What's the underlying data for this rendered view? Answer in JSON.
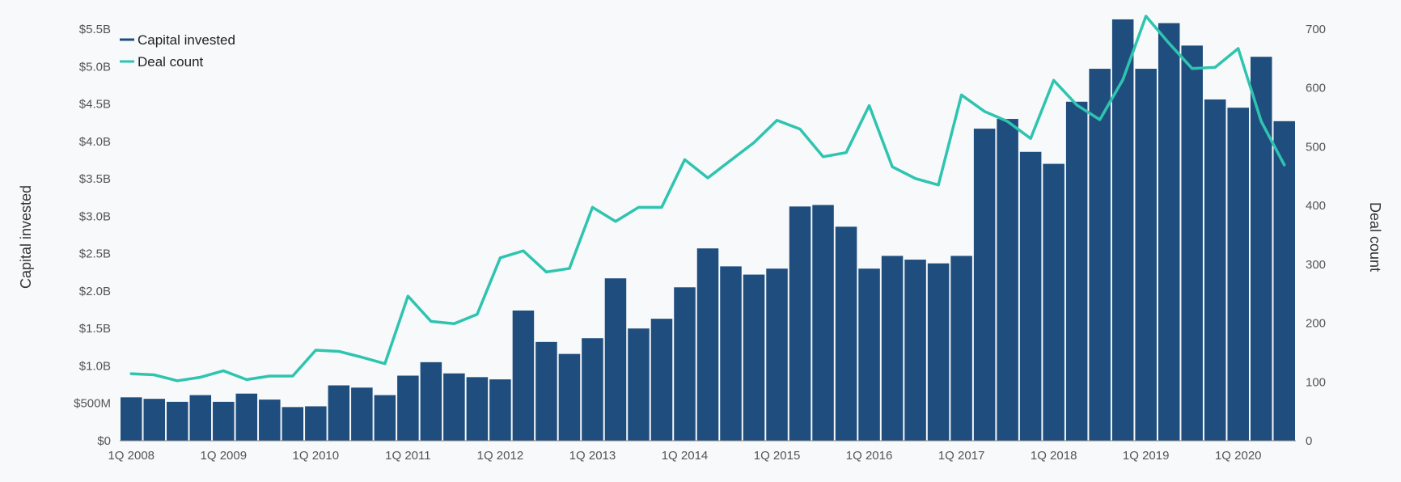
{
  "chart_data": {
    "type": "bar+line",
    "title": "",
    "y_left": {
      "label": "Capital invested",
      "min": 0,
      "max": 5500000000,
      "ticks": [
        0,
        500000000,
        1000000000,
        1500000000,
        2000000000,
        2500000000,
        3000000000,
        3500000000,
        4000000000,
        4500000000,
        5000000000,
        5500000000
      ],
      "tick_labels": [
        "$0",
        "$500M",
        "$1.0B",
        "$1.5B",
        "$2.0B",
        "$2.5B",
        "$3.0B",
        "$3.5B",
        "$4.0B",
        "$4.5B",
        "$5.0B",
        "$5.5B"
      ]
    },
    "y_right": {
      "label": "Deal count",
      "min": 0,
      "max": 700,
      "ticks": [
        0,
        100,
        200,
        300,
        400,
        500,
        600,
        700
      ],
      "tick_labels": [
        "0",
        "100",
        "200",
        "300",
        "400",
        "500",
        "600",
        "700"
      ]
    },
    "x_tick_labels": [
      "1Q 2008",
      "1Q 2009",
      "1Q 2010",
      "1Q 2011",
      "1Q 2012",
      "1Q 2013",
      "1Q 2014",
      "1Q 2015",
      "1Q 2016",
      "1Q 2017",
      "1Q 2018",
      "1Q 2019",
      "1Q 2020"
    ],
    "categories": [
      "1Q 2008",
      "2Q 2008",
      "3Q 2008",
      "4Q 2008",
      "1Q 2009",
      "2Q 2009",
      "3Q 2009",
      "4Q 2009",
      "1Q 2010",
      "2Q 2010",
      "3Q 2010",
      "4Q 2010",
      "1Q 2011",
      "2Q 2011",
      "3Q 2011",
      "4Q 2011",
      "1Q 2012",
      "2Q 2012",
      "3Q 2012",
      "4Q 2012",
      "1Q 2013",
      "2Q 2013",
      "3Q 2013",
      "4Q 2013",
      "1Q 2014",
      "2Q 2014",
      "3Q 2014",
      "4Q 2014",
      "1Q 2015",
      "2Q 2015",
      "3Q 2015",
      "4Q 2015",
      "1Q 2016",
      "2Q 2016",
      "3Q 2016",
      "4Q 2016",
      "1Q 2017",
      "2Q 2017",
      "3Q 2017",
      "4Q 2017",
      "1Q 2018",
      "2Q 2018",
      "3Q 2018",
      "4Q 2018",
      "1Q 2019",
      "2Q 2019",
      "3Q 2019",
      "4Q 2019",
      "1Q 2020",
      "2Q 2020",
      "3Q 2020"
    ],
    "series": [
      {
        "name": "Capital invested",
        "kind": "bar",
        "axis": "left",
        "color": "#1f4e7e",
        "values": [
          580000000,
          560000000,
          520000000,
          610000000,
          520000000,
          630000000,
          550000000,
          450000000,
          460000000,
          740000000,
          710000000,
          610000000,
          870000000,
          1050000000,
          900000000,
          850000000,
          820000000,
          1740000000,
          1320000000,
          1160000000,
          1370000000,
          2170000000,
          1500000000,
          1630000000,
          2050000000,
          2570000000,
          2330000000,
          2220000000,
          2300000000,
          3130000000,
          3150000000,
          2860000000,
          2300000000,
          2470000000,
          2420000000,
          2370000000,
          2470000000,
          4170000000,
          4300000000,
          3860000000,
          3700000000,
          4530000000,
          4970000000,
          5630000000,
          4970000000,
          5580000000,
          5280000000,
          4560000000,
          4450000000,
          5130000000,
          4270000000
        ]
      },
      {
        "name": "Deal count",
        "kind": "line",
        "axis": "right",
        "color": "#2ec4b0",
        "values": [
          114,
          112,
          102,
          108,
          119,
          104,
          110,
          110,
          154,
          152,
          142,
          131,
          246,
          203,
          199,
          215,
          311,
          323,
          287,
          293,
          397,
          373,
          397,
          397,
          478,
          447,
          477,
          507,
          545,
          530,
          483,
          490,
          570,
          466,
          446,
          435,
          588,
          560,
          543,
          514,
          613,
          571,
          546,
          614,
          722,
          676,
          633,
          635,
          667,
          543,
          469
        ]
      }
    ],
    "legend": {
      "placement": "top-left",
      "items": [
        {
          "label": "Capital invested",
          "color": "#1f4e7e"
        },
        {
          "label": "Deal count",
          "color": "#2ec4b0"
        }
      ]
    },
    "grid": false
  }
}
